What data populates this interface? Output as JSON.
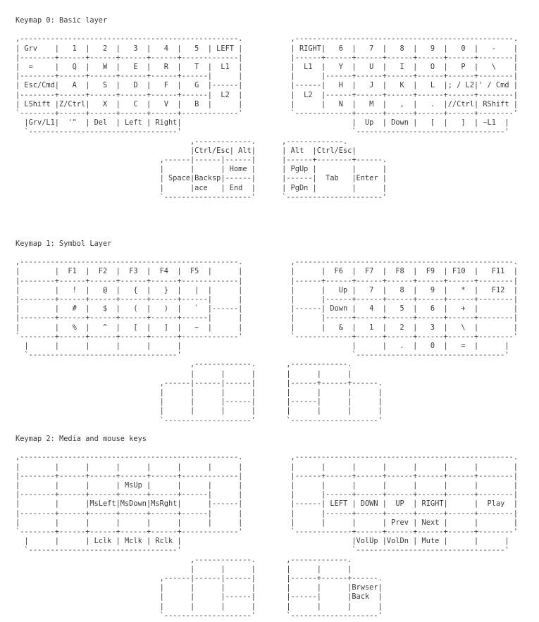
{
  "page": {
    "background": "#ffffff",
    "text_color": "#3b3b3b"
  },
  "keymaps": [
    {
      "title": "Keymap 0: Basic layer",
      "art": [
        ",--------------------------------------------------.           ,--------------------------------------------------.",
        "| Grv    |   1  |   2  |   3  |   4  |   5  | LEFT |           | RIGHT|   6  |   7  |   8  |   9  |   0  |   -    |",
        "|--------+------+------+------+------+-------------|           |------+------+------+------+------+------+--------|",
        "|  =     |   Q  |   W  |   E  |   R  |   T  |  L1  |           |  L1  |   Y  |   U  |   I  |   O  |   P  |   \\    |",
        "|--------+------+------+------+------+------|      |           |      |------+------+------+------+------+--------|",
        "| Esc/Cmd|   A  |   S  |   D  |   F  |   G  |------|           |------|   H  |   J  |   K  |   L  |; / L2|' / Cmd |",
        "|--------+------+------+------+------+------|  L2  |           |  L2  |------+------+------+------+------+--------|",
        "| LShift |Z/Ctrl|   X  |   C  |   V  |   B  |      |           |      |   N  |   M  |   ,  |   .  |//Ctrl| RShift |",
        "`--------+------+------+------+------+-------------'           `-------------+------+------+------+------+--------'",
        "  |Grv/L1|  '\"  | Del  | Left | Right|                                       |  Up  | Down |   [  |   ]  | ~L1  |",
        "  `----------------------------------'                                       `----------------------------------'",
        "                                        ,-------------.      ,-------------.",
        "                                        |Ctrl/Esc| Alt|      | Alt  |Ctrl/Esc|",
        "                                 ,------|------|------|      |------+--------+------.",
        "                                 |      |      | Home |      | PgUp |        |      |",
        "                                 | Space|Backsp|------|      |------|  Tab   |Enter |",
        "                                 |      |ace   | End  |      | PgDn |        |      |",
        "                                 `--------------------'      `----------------------'"
      ]
    },
    {
      "title": "Keymap 1: Symbol Layer",
      "art": [
        ",--------------------------------------------------.           ,--------------------------------------------------.",
        "|        |  F1  |  F2  |  F3  |  F4  |  F5  |      |           |      |  F6  |  F7  |  F8  |  F9  | F10  |   F11  |",
        "|--------+------+------+------+------+-------------|           |------+------+------+------+------+------+--------|",
        "|        |   !  |   @  |   {  |   }  |   |  |      |           |      |   Up |   7  |   8  |   9  |   *  |   F12  |",
        "|--------+------+------+------+------+------|      |           |      |------+------+------+------+------+--------|",
        "|        |   #  |   $  |   (  |   )  |   `  |------|           |------| Down |   4  |   5  |   6  |   +  |        |",
        "|--------+------+------+------+------+------|      |           |      |------+------+------+------+------+--------|",
        "|        |   %  |   ^  |   [  |   ]  |   ~  |      |           |      |   &  |   1  |   2  |   3  |   \\  |        |",
        "`--------+------+------+------+------+-------------'           `-------------+------+------+------+------+--------'",
        "  |      |      |      |      |      |                                       |      |   .  |   0  |   =  |      |",
        "  `----------------------------------'                                       `----------------------------------'",
        "                                        ,-------------.       ,-------------.",
        "                                        |      |      |       |      |      |",
        "                                 ,------|------|------|       |------+------+------.",
        "                                 |      |      |      |       |      |      |      |",
        "                                 |      |      |------|       |------|      |      |",
        "                                 |      |      |      |       |      |      |      |",
        "                                 `--------------------'       `--------------------'"
      ]
    },
    {
      "title": "Keymap 2: Media and mouse keys",
      "art": [
        ",--------------------------------------------------.           ,--------------------------------------------------.",
        "|        |      |      |      |      |      |      |           |      |      |      |      |      |      |        |",
        "|--------+------+------+------+------+-------------|           |------+------+------+------+------+------+--------|",
        "|        |      |      | MsUp |      |      |      |           |      |      |      |      |      |      |        |",
        "|--------+------+------+------+------+------|      |           |      |------+------+------+------+------+--------|",
        "|        |      |MsLeft|MsDown|MsRght|      |------|           |------| LEFT | DOWN |  UP  | RIGHT|      |  Play  |",
        "|--------+------+------+------+------+------|      |           |      |------+------+------+------+------+--------|",
        "|        |      |      |      |      |      |      |           |      |      |      | Prev | Next |      |        |",
        "`--------+------+------+------+------+-------------'           `-------------+------+------+------+------+--------'",
        "  |      |      | Lclk | Mclk | Rclk |                                       |VolUp |VolDn | Mute |      |      |",
        "  `----------------------------------'                                       `----------------------------------'",
        "                                        ,-------------.       ,-------------.",
        "                                        |      |      |       |      |      |",
        "                                 ,------|------|------|       |------+------+------.",
        "                                 |      |      |      |       |      |      |Brwser|",
        "                                 |      |      |------|       |------|      |Back  |",
        "                                 |      |      |      |       |      |      |      |",
        "                                 `--------------------'       `--------------------'"
      ]
    }
  ]
}
